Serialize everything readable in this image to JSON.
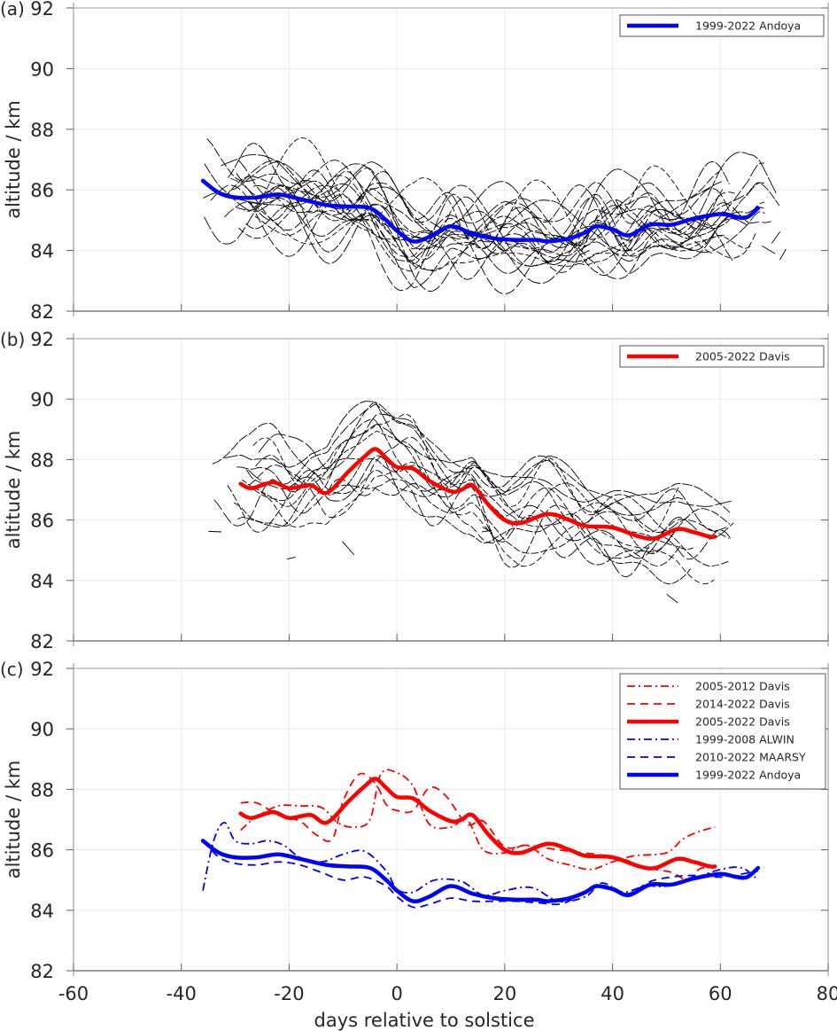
{
  "figure": {
    "xlabel": "days relative to solstice",
    "xlim": [
      -60,
      80
    ],
    "xticks": [
      -60,
      -40,
      -20,
      0,
      20,
      40,
      60,
      80
    ],
    "xtick_labels": [
      "-60",
      "-40",
      "-20",
      "0",
      "20",
      "40",
      "60",
      "80"
    ],
    "colors": {
      "andoya": "#0000ff",
      "davis": "#ff0000",
      "individual": "#000000",
      "grid": "#ebebeb",
      "axis": "#808080"
    }
  },
  "chart_data": [
    {
      "type": "line",
      "panel": "(a)",
      "title": "",
      "xlabel": "",
      "ylabel": "altitude / km",
      "xlim": [
        -60,
        80
      ],
      "ylim": [
        82,
        92
      ],
      "yticks": [
        82,
        84,
        86,
        88,
        90,
        92
      ],
      "ytick_labels": [
        "82",
        "84",
        "86",
        "88",
        "90",
        "92"
      ],
      "grid": true,
      "legend_position": "top-right",
      "legend": [
        {
          "label": "1999-2022 Andoya",
          "color": "#0000ff",
          "style": "solid",
          "width": "thick"
        }
      ],
      "background_traces": {
        "description": "individual years (thin black dashed)",
        "count": 22,
        "x_range": [
          -36,
          72
        ],
        "center_series": "1999-2022 Andoya",
        "spread_km": 0.9
      },
      "series": [
        {
          "name": "1999-2022 Andoya",
          "color": "#0000ff",
          "style": "solid",
          "x": [
            -36,
            -33,
            -30,
            -26,
            -22,
            -18,
            -13,
            -9,
            -5,
            -2,
            0,
            3,
            6,
            10,
            14,
            18,
            22,
            26,
            28,
            32,
            35,
            37,
            40,
            43,
            47,
            51,
            55,
            60,
            63,
            65,
            67
          ],
          "y": [
            86.3,
            85.9,
            85.75,
            85.75,
            85.85,
            85.7,
            85.5,
            85.45,
            85.4,
            85.0,
            84.65,
            84.3,
            84.45,
            84.8,
            84.55,
            84.4,
            84.35,
            84.35,
            84.3,
            84.4,
            84.6,
            84.8,
            84.7,
            84.5,
            84.85,
            84.85,
            85.05,
            85.2,
            85.1,
            85.1,
            85.4
          ]
        }
      ]
    },
    {
      "type": "line",
      "panel": "(b)",
      "title": "",
      "xlabel": "",
      "ylabel": "altitude / km",
      "xlim": [
        -60,
        80
      ],
      "ylim": [
        82,
        92
      ],
      "yticks": [
        82,
        84,
        86,
        88,
        90,
        92
      ],
      "ytick_labels": [
        "82",
        "84",
        "86",
        "88",
        "90",
        "92"
      ],
      "grid": true,
      "legend_position": "top-right",
      "legend": [
        {
          "label": "2005-2022 Davis",
          "color": "#ff0000",
          "style": "solid",
          "width": "thick"
        }
      ],
      "background_traces": {
        "description": "individual years (thin black dashed)",
        "count": 16,
        "x_range": [
          -35,
          66
        ],
        "center_series": "2005-2022 Davis",
        "spread_km": 1.4
      },
      "series": [
        {
          "name": "2005-2022 Davis",
          "color": "#ff0000",
          "style": "solid",
          "x": [
            -29,
            -27,
            -23,
            -20,
            -16,
            -13,
            -9,
            -6,
            -4,
            -2,
            0,
            3,
            6,
            10,
            12,
            14,
            17,
            20,
            23,
            28,
            32,
            35,
            40,
            45,
            48,
            52,
            55,
            58,
            59
          ],
          "y": [
            87.2,
            87.05,
            87.25,
            87.05,
            87.15,
            86.9,
            87.6,
            88.1,
            88.35,
            88.05,
            87.75,
            87.7,
            87.3,
            86.95,
            87.0,
            87.15,
            86.5,
            86.0,
            85.9,
            86.2,
            86.0,
            85.8,
            85.75,
            85.45,
            85.4,
            85.7,
            85.6,
            85.45,
            85.45
          ]
        }
      ]
    },
    {
      "type": "line",
      "panel": "(c)",
      "title": "",
      "xlabel": "days relative to solstice",
      "ylabel": "altitude / km",
      "xlim": [
        -60,
        80
      ],
      "ylim": [
        82,
        92
      ],
      "yticks": [
        82,
        84,
        86,
        88,
        90,
        92
      ],
      "ytick_labels": [
        "82",
        "84",
        "86",
        "88",
        "90",
        "92"
      ],
      "grid": true,
      "legend_position": "top-right",
      "legend": [
        {
          "label": "2005-2012 Davis",
          "color": "#ff0000",
          "style": "dashdot",
          "width": "thin"
        },
        {
          "label": "2014-2022 Davis",
          "color": "#ff0000",
          "style": "dashed",
          "width": "thin"
        },
        {
          "label": "2005-2022 Davis",
          "color": "#ff0000",
          "style": "solid",
          "width": "thick"
        },
        {
          "label": "1999-2008 ALWIN",
          "color": "#0000ff",
          "style": "dashdot",
          "width": "thin"
        },
        {
          "label": "2010-2022 MAARSY",
          "color": "#0000ff",
          "style": "dashed",
          "width": "thin"
        },
        {
          "label": "1999-2022 Andoya",
          "color": "#0000ff",
          "style": "solid",
          "width": "thick"
        }
      ],
      "series": [
        {
          "name": "2005-2012 Davis",
          "color": "#ff0000",
          "style": "dashdot",
          "x": [
            -29,
            -26,
            -22,
            -18,
            -14,
            -11,
            -8,
            -5,
            -3,
            0,
            3,
            6,
            10,
            13,
            16,
            20,
            24,
            28,
            32,
            36,
            40,
            44,
            50,
            53,
            56,
            59
          ],
          "y": [
            86.65,
            87.1,
            87.45,
            87.45,
            87.4,
            86.9,
            86.75,
            87.0,
            88.5,
            88.55,
            88.1,
            86.85,
            86.75,
            87.0,
            86.0,
            85.9,
            86.15,
            85.7,
            85.5,
            85.35,
            85.6,
            85.8,
            85.9,
            86.35,
            86.6,
            86.75
          ]
        },
        {
          "name": "2014-2022 Davis",
          "color": "#ff0000",
          "style": "dashed",
          "x": [
            -29,
            -26,
            -22,
            -18,
            -15,
            -12,
            -10,
            -7,
            -4,
            -2,
            0,
            3,
            6,
            9,
            13,
            16,
            20,
            24,
            28,
            32,
            37,
            42,
            45,
            48,
            51,
            54,
            56,
            58
          ],
          "y": [
            87.55,
            87.55,
            87.15,
            86.95,
            86.5,
            86.35,
            87.6,
            88.5,
            88.2,
            87.5,
            87.3,
            87.3,
            88.05,
            87.8,
            86.85,
            86.95,
            86.1,
            86.15,
            86.05,
            85.95,
            85.85,
            85.7,
            85.45,
            85.35,
            85.25,
            85.0,
            85.35,
            85.45
          ]
        },
        {
          "name": "2005-2022 Davis",
          "color": "#ff0000",
          "style": "solid",
          "x": [
            -29,
            -27,
            -23,
            -20,
            -16,
            -13,
            -9,
            -6,
            -4,
            -2,
            0,
            3,
            6,
            10,
            12,
            14,
            17,
            20,
            23,
            28,
            32,
            35,
            40,
            45,
            48,
            52,
            55,
            58,
            59
          ],
          "y": [
            87.2,
            87.05,
            87.25,
            87.05,
            87.15,
            86.9,
            87.6,
            88.1,
            88.35,
            88.05,
            87.75,
            87.7,
            87.3,
            86.95,
            87.0,
            87.15,
            86.5,
            86.0,
            85.9,
            86.2,
            86.0,
            85.8,
            85.75,
            85.45,
            85.4,
            85.7,
            85.6,
            85.45,
            85.45
          ]
        },
        {
          "name": "1999-2008 ALWIN",
          "color": "#0000ff",
          "style": "dashdot",
          "x": [
            -36,
            -34,
            -32,
            -30,
            -27,
            -24,
            -21,
            -18,
            -14,
            -10,
            -6,
            -2,
            0,
            3,
            7,
            12,
            16,
            20,
            25,
            30,
            35,
            38,
            42,
            46,
            50,
            55,
            60,
            64,
            67
          ],
          "y": [
            84.65,
            86.3,
            86.9,
            86.3,
            86.2,
            86.3,
            86.15,
            85.75,
            85.6,
            85.85,
            85.95,
            85.3,
            84.7,
            84.6,
            85.0,
            84.95,
            84.5,
            84.65,
            84.75,
            84.3,
            84.45,
            84.9,
            84.6,
            84.8,
            84.8,
            85.05,
            85.35,
            85.4,
            85.0
          ]
        },
        {
          "name": "2010-2022 MAARSY",
          "color": "#0000ff",
          "style": "dashed",
          "x": [
            -36,
            -33,
            -30,
            -26,
            -22,
            -18,
            -14,
            -10,
            -6,
            -2,
            0,
            3,
            6,
            10,
            14,
            18,
            22,
            26,
            30,
            33,
            37,
            40,
            43,
            47,
            51,
            55,
            60,
            64,
            67
          ],
          "y": [
            86.3,
            85.75,
            85.55,
            85.5,
            85.6,
            85.5,
            85.25,
            85.0,
            85.1,
            84.8,
            84.45,
            84.1,
            84.2,
            84.4,
            84.3,
            84.3,
            84.3,
            84.25,
            84.2,
            84.4,
            84.8,
            84.75,
            84.55,
            84.95,
            85.1,
            85.15,
            85.1,
            85.2,
            85.3
          ]
        },
        {
          "name": "1999-2022 Andoya",
          "color": "#0000ff",
          "style": "solid",
          "x": [
            -36,
            -33,
            -30,
            -26,
            -22,
            -18,
            -13,
            -9,
            -5,
            -2,
            0,
            3,
            6,
            10,
            14,
            18,
            22,
            26,
            28,
            32,
            35,
            37,
            40,
            43,
            47,
            51,
            55,
            60,
            63,
            65,
            67
          ],
          "y": [
            86.3,
            85.9,
            85.75,
            85.75,
            85.85,
            85.7,
            85.5,
            85.45,
            85.4,
            85.0,
            84.65,
            84.3,
            84.45,
            84.8,
            84.55,
            84.4,
            84.35,
            84.35,
            84.3,
            84.4,
            84.6,
            84.8,
            84.7,
            84.5,
            84.85,
            84.85,
            85.05,
            85.2,
            85.1,
            85.1,
            85.4
          ]
        }
      ]
    }
  ]
}
